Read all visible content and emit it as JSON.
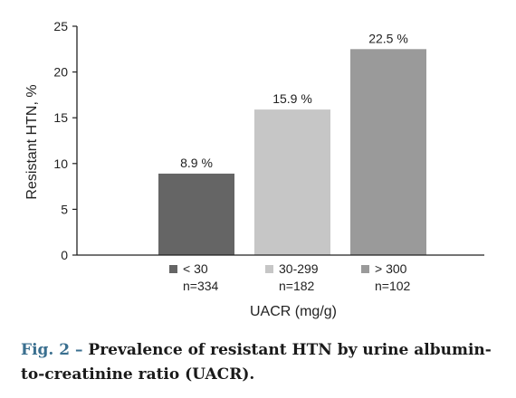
{
  "chart_data": {
    "type": "bar",
    "categories": [
      "< 30",
      "30-299",
      "> 300"
    ],
    "sample_sizes": [
      "n=334",
      "n=182",
      "n=102"
    ],
    "values": [
      8.9,
      15.9,
      22.5
    ],
    "data_labels": [
      "8.9 %",
      "15.9 %",
      "22.5 %"
    ],
    "colors": [
      "#656565",
      "#c6c6c6",
      "#9a9a9a"
    ],
    "ylabel": "Resistant HTN, %",
    "xlabel": "UACR (mg/g)",
    "ylim": [
      0,
      25
    ],
    "yticks": [
      0,
      5,
      10,
      15,
      20,
      25
    ],
    "grid": false,
    "legend_placement": "below-axis"
  },
  "caption": {
    "label": "Fig. 2 –",
    "text": "Prevalence of resistant HTN by urine albumin-to-creatinine ratio (UACR)."
  }
}
